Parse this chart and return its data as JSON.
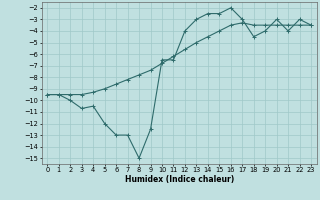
{
  "line1_x": [
    0,
    1,
    2,
    3,
    4,
    5,
    6,
    7,
    8,
    9,
    10,
    11,
    12,
    13,
    14,
    15,
    16,
    17,
    18,
    19,
    20,
    21,
    22,
    23
  ],
  "line1_y": [
    -9.5,
    -9.5,
    -10.0,
    -10.7,
    -10.5,
    -12.0,
    -13.0,
    -13.0,
    -15.0,
    -12.5,
    -6.5,
    -6.5,
    -4.0,
    -3.0,
    -2.5,
    -2.5,
    -2.0,
    -3.0,
    -4.5,
    -4.0,
    -3.0,
    -4.0,
    -3.0,
    -3.5
  ],
  "line2_x": [
    0,
    1,
    2,
    3,
    4,
    5,
    6,
    7,
    8,
    9,
    10,
    11,
    12,
    13,
    14,
    15,
    16,
    17,
    18,
    19,
    20,
    21,
    22,
    23
  ],
  "line2_y": [
    -9.5,
    -9.5,
    -9.5,
    -9.5,
    -9.3,
    -9.0,
    -8.6,
    -8.2,
    -7.8,
    -7.4,
    -6.8,
    -6.2,
    -5.6,
    -5.0,
    -4.5,
    -4.0,
    -3.5,
    -3.3,
    -3.5,
    -3.5,
    -3.5,
    -3.5,
    -3.5,
    -3.5
  ],
  "color": "#2e6b6b",
  "bg_color": "#c0e0e0",
  "grid_color": "#a0c8c8",
  "xlabel": "Humidex (Indice chaleur)",
  "ylim": [
    -15.5,
    -1.5
  ],
  "xlim": [
    -0.5,
    23.5
  ],
  "yticks": [
    -2,
    -3,
    -4,
    -5,
    -6,
    -7,
    -8,
    -9,
    -10,
    -11,
    -12,
    -13,
    -14,
    -15
  ],
  "xticks": [
    0,
    1,
    2,
    3,
    4,
    5,
    6,
    7,
    8,
    9,
    10,
    11,
    12,
    13,
    14,
    15,
    16,
    17,
    18,
    19,
    20,
    21,
    22,
    23
  ],
  "xlabel_fontsize": 5.5,
  "tick_fontsize": 4.8,
  "linewidth": 0.8,
  "markersize": 2.5
}
